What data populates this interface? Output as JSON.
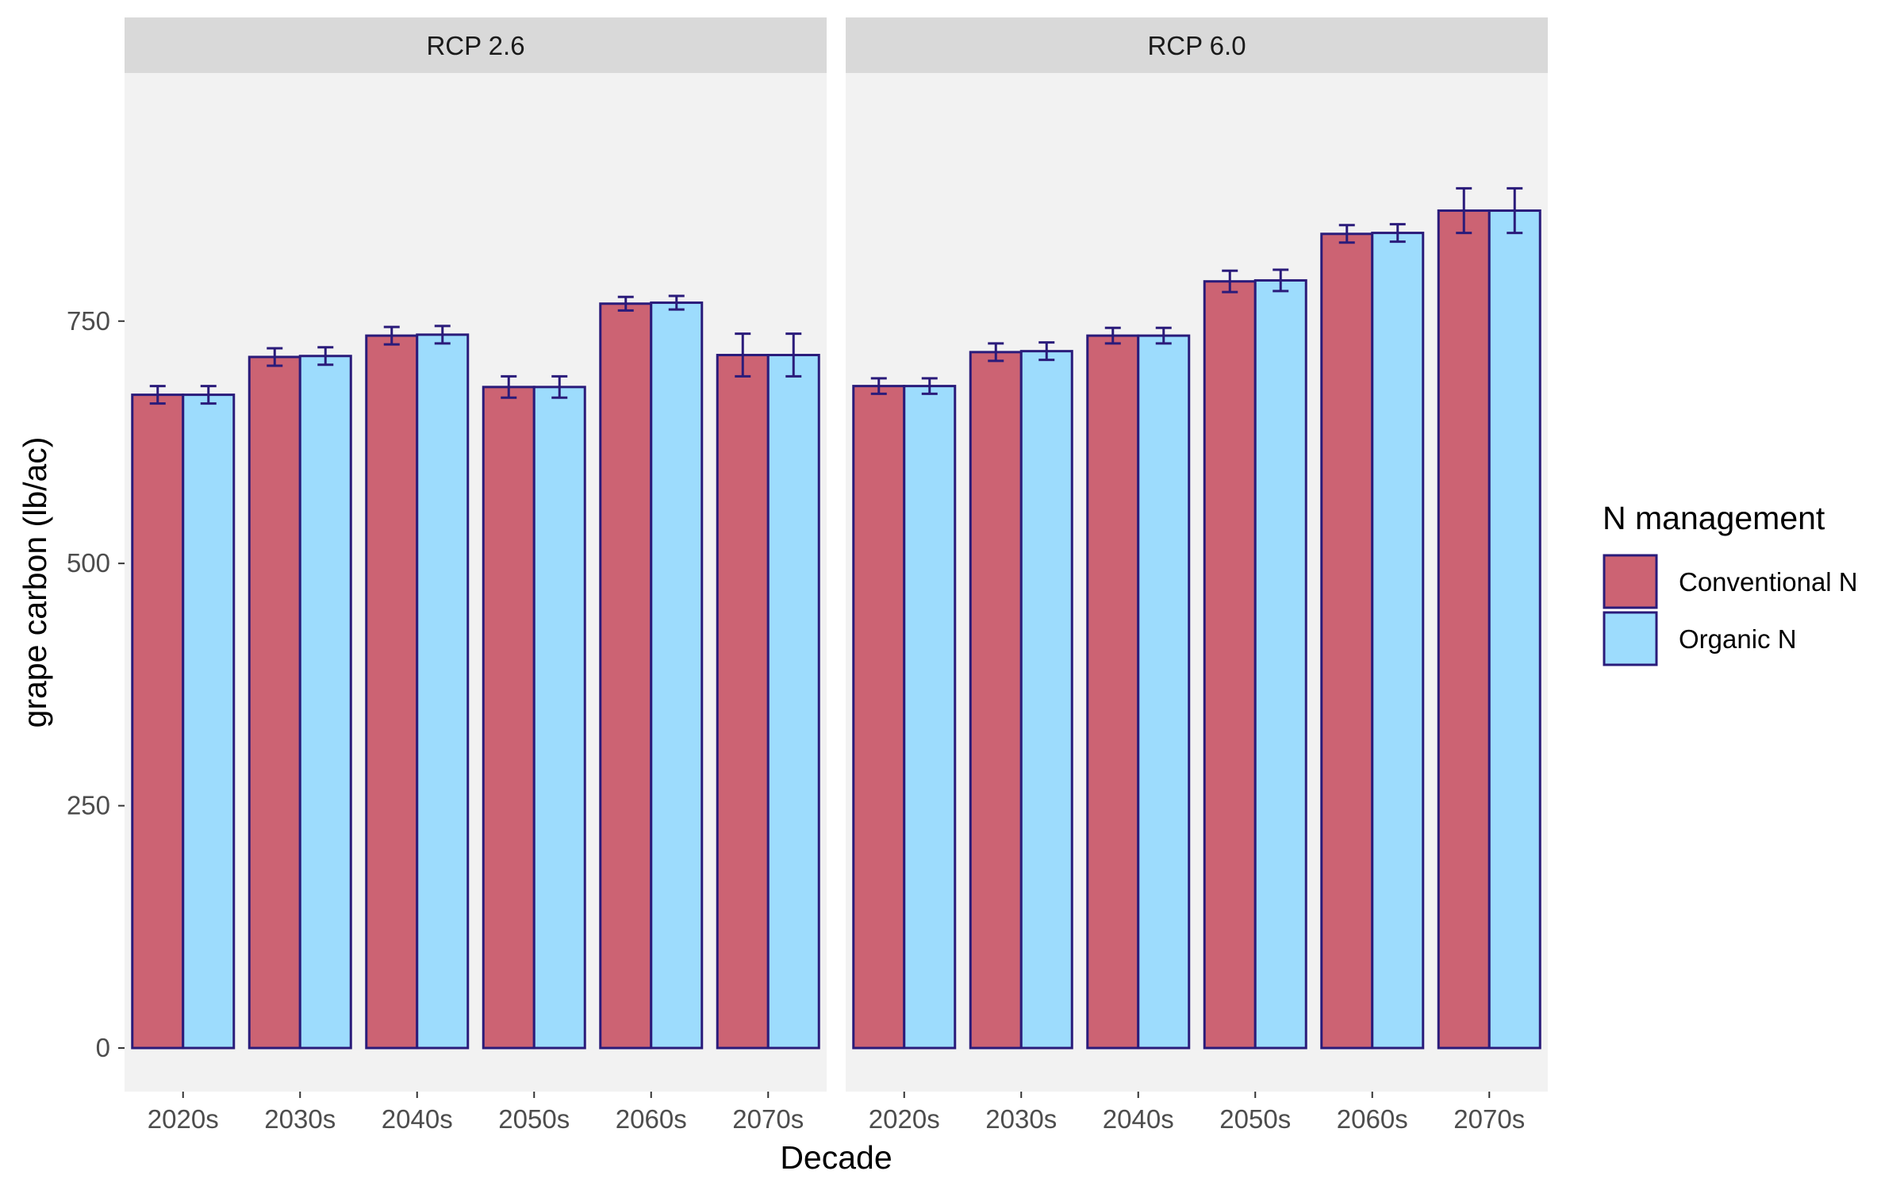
{
  "chart_data": {
    "type": "bar",
    "xlabel": "Decade",
    "ylabel": "grape carbon (lb/ac)",
    "ylim": [
      -45,
      1006
    ],
    "yticks": [
      0,
      250,
      500,
      750
    ],
    "categories": [
      "2020s",
      "2030s",
      "2040s",
      "2050s",
      "2060s",
      "2070s"
    ],
    "legend": {
      "title": "N management",
      "position": "right",
      "entries": [
        "Conventional N",
        "Organic N"
      ]
    },
    "colors": {
      "Conventional N": "#cc6373",
      "Organic N": "#9ddcfd",
      "outline": "#2a1b7a",
      "panel_bg": "#f2f2f2",
      "strip_bg": "#d9d9d9"
    },
    "panels": [
      {
        "label": "RCP 2.6",
        "series": [
          {
            "name": "Conventional N",
            "values": [
              674,
              713,
              735,
              682,
              768,
              715
            ],
            "err": [
              9,
              9,
              9,
              11,
              7,
              22
            ]
          },
          {
            "name": "Organic N",
            "values": [
              674,
              714,
              736,
              682,
              769,
              715
            ],
            "err": [
              9,
              9,
              9,
              11,
              7,
              22
            ]
          }
        ]
      },
      {
        "label": "RCP 6.0",
        "series": [
          {
            "name": "Conventional N",
            "values": [
              683,
              718,
              735,
              791,
              840,
              864
            ],
            "err": [
              8,
              9,
              8,
              11,
              9,
              23
            ]
          },
          {
            "name": "Organic N",
            "values": [
              683,
              719,
              735,
              792,
              841,
              864
            ],
            "err": [
              8,
              9,
              8,
              11,
              9,
              23
            ]
          }
        ]
      }
    ]
  }
}
